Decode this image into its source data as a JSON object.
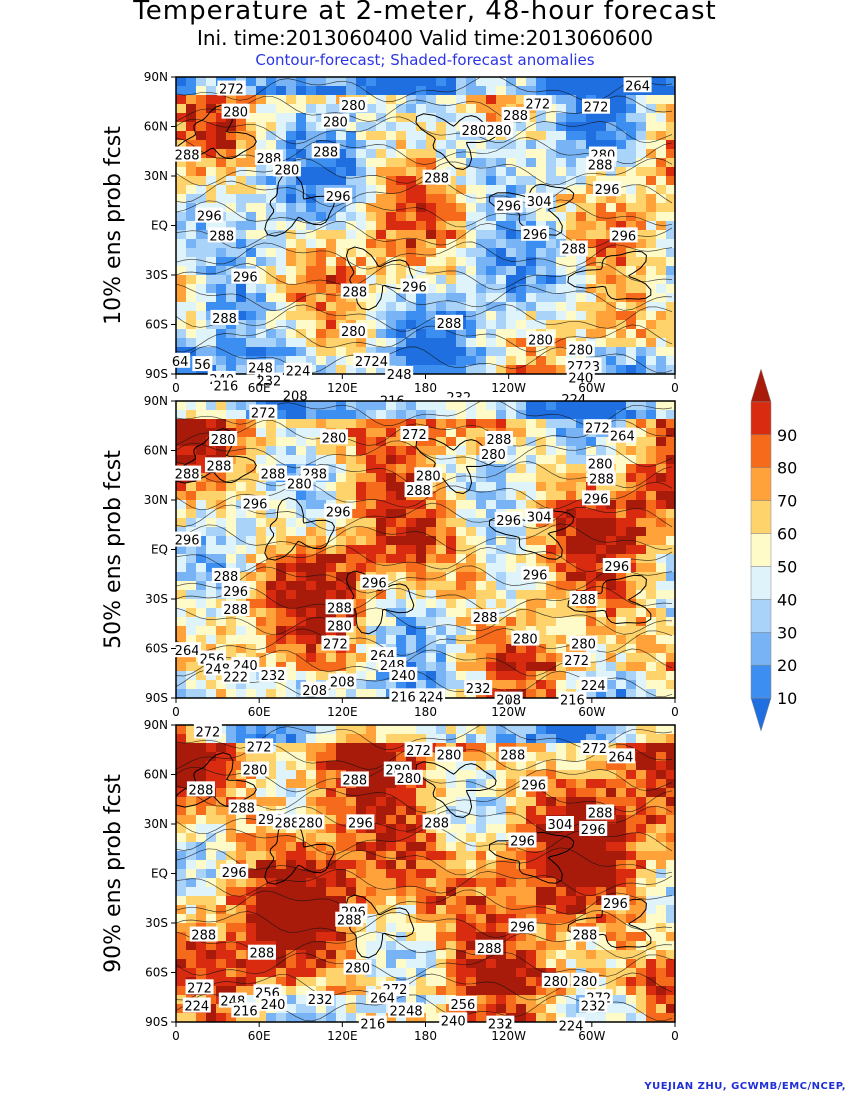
{
  "title": "Temperature at 2-meter, 48-hour forecast",
  "subtitle": "Ini. time:2013060400    Valid time:2013060600",
  "note": "Contour-forecast; Shaded-forecast anomalies",
  "credit": "YUEJIAN ZHU, GCWMB/EMC/NCEP,",
  "colors": {
    "bins": [
      "#1f6fe0",
      "#3c8ff0",
      "#78b4f5",
      "#a9d3f8",
      "#dff3fb",
      "#fffbc9",
      "#ffd36b",
      "#ffa23a",
      "#f56a1b",
      "#d92b10",
      "#a81b0b"
    ],
    "ocean_cool": "#2a78e6"
  },
  "chart_data": [
    {
      "type": "heatmap",
      "ylabel": "10% ens prob fcst",
      "x_ticks": [
        "0",
        "60E",
        "120E",
        "180",
        "120W",
        "60W",
        "0"
      ],
      "y_ticks": [
        "90N",
        "60N",
        "30N",
        "EQ",
        "30S",
        "60S",
        "90S"
      ],
      "warm_fraction": 0.45,
      "contour_labels": [
        {
          "text": "272",
          "lon": 40,
          "lat": 83
        },
        {
          "text": "280",
          "lon": 43,
          "lat": 69
        },
        {
          "text": "280",
          "lon": 128,
          "lat": 73
        },
        {
          "text": "280",
          "lon": 115,
          "lat": 63
        },
        {
          "text": "288",
          "lon": 8,
          "lat": 43
        },
        {
          "text": "288",
          "lon": 67,
          "lat": 41
        },
        {
          "text": "280",
          "lon": 80,
          "lat": 34
        },
        {
          "text": "288",
          "lon": 108,
          "lat": 45
        },
        {
          "text": "288",
          "lon": 188,
          "lat": 29
        },
        {
          "text": "296",
          "lon": 117,
          "lat": 18
        },
        {
          "text": "280",
          "lon": 215,
          "lat": 58
        },
        {
          "text": "280",
          "lon": 233,
          "lat": 58
        },
        {
          "text": "288",
          "lon": 245,
          "lat": 67
        },
        {
          "text": "272",
          "lon": 261,
          "lat": 74
        },
        {
          "text": "272",
          "lon": 303,
          "lat": 72
        },
        {
          "text": "264",
          "lon": 333,
          "lat": 85
        },
        {
          "text": "280",
          "lon": 308,
          "lat": 43
        },
        {
          "text": "288",
          "lon": 306,
          "lat": 37
        },
        {
          "text": "296",
          "lon": 311,
          "lat": 22
        },
        {
          "text": "304",
          "lon": 262,
          "lat": 15
        },
        {
          "text": "296",
          "lon": 240,
          "lat": 12
        },
        {
          "text": "296",
          "lon": 24,
          "lat": 6
        },
        {
          "text": "288",
          "lon": 33,
          "lat": -6
        },
        {
          "text": "296",
          "lon": 259,
          "lat": -5
        },
        {
          "text": "288",
          "lon": 287,
          "lat": -14
        },
        {
          "text": "296",
          "lon": 323,
          "lat": -6
        },
        {
          "text": "296",
          "lon": 50,
          "lat": -31
        },
        {
          "text": "288",
          "lon": 129,
          "lat": -40
        },
        {
          "text": "296",
          "lon": 172,
          "lat": -37
        },
        {
          "text": "288",
          "lon": 35,
          "lat": -56
        },
        {
          "text": "280",
          "lon": 128,
          "lat": -64
        },
        {
          "text": "288",
          "lon": 197,
          "lat": -59
        },
        {
          "text": "280",
          "lon": 263,
          "lat": -69
        },
        {
          "text": "280",
          "lon": 292,
          "lat": -75
        },
        {
          "text": "64",
          "lon": 3,
          "lat": -82
        },
        {
          "text": "56",
          "lon": 19,
          "lat": -84
        },
        {
          "text": "248",
          "lon": 61,
          "lat": -86
        },
        {
          "text": "224",
          "lon": 88,
          "lat": -88
        },
        {
          "text": "2724",
          "lon": 141,
          "lat": -82
        },
        {
          "text": "240",
          "lon": 33,
          "lat": -93
        },
        {
          "text": "216",
          "lon": 36,
          "lat": -97
        },
        {
          "text": "232",
          "lon": 67,
          "lat": -94
        },
        {
          "text": "208",
          "lon": 86,
          "lat": -103
        },
        {
          "text": "248",
          "lon": 161,
          "lat": -90
        },
        {
          "text": "232",
          "lon": 204,
          "lat": -104
        },
        {
          "text": "224",
          "lon": 204,
          "lat": -109
        },
        {
          "text": "216",
          "lon": 156,
          "lat": -106
        },
        {
          "text": "2723",
          "lon": 294,
          "lat": -85
        },
        {
          "text": "240",
          "lon": 292,
          "lat": -92
        },
        {
          "text": "224",
          "lon": 287,
          "lat": -105
        }
      ]
    },
    {
      "type": "heatmap",
      "ylabel": "50% ens prob fcst",
      "x_ticks": [
        "0",
        "60E",
        "120E",
        "180",
        "120W",
        "60W",
        "0"
      ],
      "y_ticks": [
        "90N",
        "60N",
        "30N",
        "EQ",
        "30S",
        "60S",
        "90S"
      ],
      "warm_fraction": 0.65,
      "contour_labels": [
        {
          "text": "272",
          "lon": 63,
          "lat": 83
        },
        {
          "text": "280",
          "lon": 34,
          "lat": 67
        },
        {
          "text": "280",
          "lon": 114,
          "lat": 68
        },
        {
          "text": "272",
          "lon": 172,
          "lat": 70
        },
        {
          "text": "288",
          "lon": 233,
          "lat": 67
        },
        {
          "text": "280",
          "lon": 229,
          "lat": 58
        },
        {
          "text": "272",
          "lon": 304,
          "lat": 74
        },
        {
          "text": "264",
          "lon": 322,
          "lat": 69
        },
        {
          "text": "288",
          "lon": 8,
          "lat": 46
        },
        {
          "text": "288",
          "lon": 31,
          "lat": 51
        },
        {
          "text": "288",
          "lon": 70,
          "lat": 46
        },
        {
          "text": "288",
          "lon": 100,
          "lat": 46
        },
        {
          "text": "280",
          "lon": 89,
          "lat": 40
        },
        {
          "text": "280",
          "lon": 182,
          "lat": 45
        },
        {
          "text": "288",
          "lon": 175,
          "lat": 36
        },
        {
          "text": "280",
          "lon": 306,
          "lat": 52
        },
        {
          "text": "288",
          "lon": 307,
          "lat": 43
        },
        {
          "text": "296",
          "lon": 303,
          "lat": 31
        },
        {
          "text": "296",
          "lon": 57,
          "lat": 28
        },
        {
          "text": "296",
          "lon": 117,
          "lat": 23
        },
        {
          "text": "296",
          "lon": 240,
          "lat": 18
        },
        {
          "text": "304",
          "lon": 262,
          "lat": 20
        },
        {
          "text": "296",
          "lon": 8,
          "lat": 6
        },
        {
          "text": "288",
          "lon": 36,
          "lat": -16
        },
        {
          "text": "296",
          "lon": 43,
          "lat": -25
        },
        {
          "text": "296",
          "lon": 143,
          "lat": -20
        },
        {
          "text": "296",
          "lon": 259,
          "lat": -15
        },
        {
          "text": "296",
          "lon": 318,
          "lat": -10
        },
        {
          "text": "288",
          "lon": 294,
          "lat": -30
        },
        {
          "text": "288",
          "lon": 43,
          "lat": -36
        },
        {
          "text": "288",
          "lon": 118,
          "lat": -35
        },
        {
          "text": "288",
          "lon": 223,
          "lat": -41
        },
        {
          "text": "280",
          "lon": 118,
          "lat": -46
        },
        {
          "text": "280",
          "lon": 252,
          "lat": -54
        },
        {
          "text": "280",
          "lon": 294,
          "lat": -57
        },
        {
          "text": "272",
          "lon": 115,
          "lat": -57
        },
        {
          "text": "264",
          "lon": 8,
          "lat": -61
        },
        {
          "text": "256",
          "lon": 26,
          "lat": -66
        },
        {
          "text": "248",
          "lon": 30,
          "lat": -72
        },
        {
          "text": "240",
          "lon": 50,
          "lat": -70
        },
        {
          "text": "232",
          "lon": 70,
          "lat": -76
        },
        {
          "text": "222",
          "lon": 43,
          "lat": -77
        },
        {
          "text": "264",
          "lon": 149,
          "lat": -64
        },
        {
          "text": "248",
          "lon": 156,
          "lat": -70
        },
        {
          "text": "240",
          "lon": 164,
          "lat": -76
        },
        {
          "text": "208",
          "lon": 120,
          "lat": -80
        },
        {
          "text": "208",
          "lon": 100,
          "lat": -85
        },
        {
          "text": "216",
          "lon": 164,
          "lat": -89
        },
        {
          "text": "224",
          "lon": 184,
          "lat": -89
        },
        {
          "text": "232",
          "lon": 218,
          "lat": -84
        },
        {
          "text": "272",
          "lon": 289,
          "lat": -67
        },
        {
          "text": "224",
          "lon": 301,
          "lat": -82
        },
        {
          "text": "216",
          "lon": 286,
          "lat": -91
        },
        {
          "text": "208",
          "lon": 240,
          "lat": -91
        }
      ]
    },
    {
      "type": "heatmap",
      "ylabel": "90% ens prob fcst",
      "x_ticks": [
        "0",
        "60E",
        "120E",
        "180",
        "120W",
        "60W",
        "0"
      ],
      "y_ticks": [
        "90N",
        "60N",
        "30N",
        "EQ",
        "30S",
        "60S",
        "90S"
      ],
      "warm_fraction": 0.8,
      "contour_labels": [
        {
          "text": "272",
          "lon": 23,
          "lat": 86
        },
        {
          "text": "272",
          "lon": 60,
          "lat": 77
        },
        {
          "text": "280",
          "lon": 57,
          "lat": 63
        },
        {
          "text": "272",
          "lon": 175,
          "lat": 75
        },
        {
          "text": "280",
          "lon": 197,
          "lat": 72
        },
        {
          "text": "280",
          "lon": 160,
          "lat": 63
        },
        {
          "text": "280",
          "lon": 168,
          "lat": 58
        },
        {
          "text": "288",
          "lon": 129,
          "lat": 57
        },
        {
          "text": "288",
          "lon": 243,
          "lat": 72
        },
        {
          "text": "272",
          "lon": 302,
          "lat": 76
        },
        {
          "text": "264",
          "lon": 321,
          "lat": 71
        },
        {
          "text": "296",
          "lon": 258,
          "lat": 54
        },
        {
          "text": "288",
          "lon": 18,
          "lat": 51
        },
        {
          "text": "288",
          "lon": 48,
          "lat": 40
        },
        {
          "text": "296",
          "lon": 68,
          "lat": 33
        },
        {
          "text": "288",
          "lon": 80,
          "lat": 31
        },
        {
          "text": "280",
          "lon": 97,
          "lat": 31
        },
        {
          "text": "296",
          "lon": 133,
          "lat": 31
        },
        {
          "text": "288",
          "lon": 188,
          "lat": 31
        },
        {
          "text": "304",
          "lon": 277,
          "lat": 30
        },
        {
          "text": "296",
          "lon": 301,
          "lat": 27
        },
        {
          "text": "288",
          "lon": 306,
          "lat": 37
        },
        {
          "text": "296",
          "lon": 250,
          "lat": 20
        },
        {
          "text": "296",
          "lon": 42,
          "lat": 1
        },
        {
          "text": "296",
          "lon": 128,
          "lat": -23
        },
        {
          "text": "288",
          "lon": 125,
          "lat": -28
        },
        {
          "text": "296",
          "lon": 250,
          "lat": -32
        },
        {
          "text": "296",
          "lon": 317,
          "lat": -18
        },
        {
          "text": "288",
          "lon": 20,
          "lat": -37
        },
        {
          "text": "288",
          "lon": 62,
          "lat": -48
        },
        {
          "text": "288",
          "lon": 226,
          "lat": -45
        },
        {
          "text": "288",
          "lon": 295,
          "lat": -37
        },
        {
          "text": "280",
          "lon": 131,
          "lat": -57
        },
        {
          "text": "280",
          "lon": 274,
          "lat": -65
        },
        {
          "text": "280",
          "lon": 295,
          "lat": -65
        },
        {
          "text": "272",
          "lon": 17,
          "lat": -69
        },
        {
          "text": "224",
          "lon": 15,
          "lat": -80
        },
        {
          "text": "248",
          "lon": 41,
          "lat": -77
        },
        {
          "text": "256",
          "lon": 66,
          "lat": -72
        },
        {
          "text": "240",
          "lon": 70,
          "lat": -79
        },
        {
          "text": "216",
          "lon": 50,
          "lat": -83
        },
        {
          "text": "232",
          "lon": 104,
          "lat": -76
        },
        {
          "text": "272",
          "lon": 158,
          "lat": -70
        },
        {
          "text": "264",
          "lon": 149,
          "lat": -75
        },
        {
          "text": "2248",
          "lon": 166,
          "lat": -83
        },
        {
          "text": "256",
          "lon": 207,
          "lat": -79
        },
        {
          "text": "240",
          "lon": 200,
          "lat": -89
        },
        {
          "text": "216",
          "lon": 142,
          "lat": -91
        },
        {
          "text": "232",
          "lon": 234,
          "lat": -91
        },
        {
          "text": "224",
          "lon": 285,
          "lat": -92
        },
        {
          "text": "272",
          "lon": 305,
          "lat": -75
        },
        {
          "text": "232",
          "lon": 301,
          "lat": -80
        }
      ]
    }
  ],
  "colorbar": {
    "labels": [
      "10",
      "20",
      "30",
      "40",
      "50",
      "60",
      "70",
      "80",
      "90"
    ],
    "bins": 11
  }
}
